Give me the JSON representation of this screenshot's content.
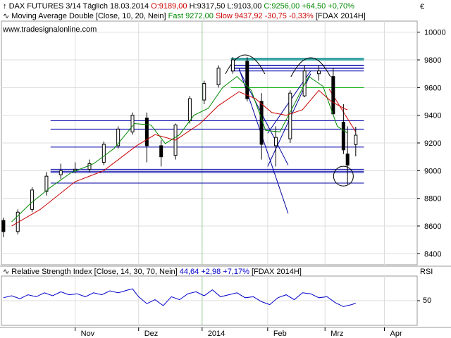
{
  "header": {
    "line1": {
      "instrument": "DAX FUTURES 3/14 Täglich",
      "date": "18.03.2014",
      "open": "O:9189,00",
      "high": "H:9317,50",
      "low": "L:9103,00",
      "close": "C:9256,00",
      "change": "+64,50",
      "change_pct": "+0,70%"
    },
    "line2": {
      "indicator": "Moving Average Double [Close, 10, 20, Nein]",
      "fast": "Fast 9272,00",
      "slow": "Slow 9437,92",
      "slow_change": "-30,75",
      "slow_change_pct": "-0,33%",
      "symbol": "[FDAX 2014H]"
    },
    "website": "www.tradesignalonline.com",
    "currency": "€"
  },
  "rsi_header": {
    "indicator": "Relative Strength Index [Close, 14, 30, 70, Nein]",
    "value": "44,64",
    "change": "+2,98",
    "change_pct": "+7,17%",
    "symbol": "[FDAX 2014H]",
    "axis_label": "RSI",
    "tick_50": "50"
  },
  "colors": {
    "up": "#000000",
    "down": "#000000",
    "fast_ma": "#008800",
    "slow_ma": "#cc0000",
    "trend": "#000099",
    "support": "#0000aa",
    "teal": "#008888",
    "green_level": "#00aa00",
    "grid": "#dddddd",
    "rsi": "#0000cc",
    "divider": "#99cc99"
  },
  "chart_data": [
    {
      "type": "candlestick",
      "title": "DAX FUTURES 3/14 Täglich",
      "ylim": [
        8320,
        10080
      ],
      "y_ticks": [
        "10000",
        "9800",
        "9600",
        "9400",
        "9200",
        "9000",
        "8800",
        "8600",
        "8400"
      ],
      "y_tick_values": [
        10000,
        9800,
        9600,
        9400,
        9200,
        9000,
        8800,
        8600,
        8400
      ],
      "x_tick_labels": [
        "Nov",
        "Dez",
        "2014",
        "Feb",
        "Mrz",
        "Apr"
      ],
      "x_tick_dates": [
        "2013-11-01",
        "2013-12-02",
        "2014-01-02",
        "2014-02-03",
        "2014-03-03",
        "2014-04-01"
      ],
      "x_range": [
        "2013-09-26",
        "2014-04-17"
      ],
      "grid": true,
      "series": [
        {
          "name": "Fast 9272,00",
          "kind": "ma",
          "period": 10,
          "x": [
            "2013-10-01",
            "2013-10-10",
            "2013-10-20",
            "2013-10-30",
            "2013-11-10",
            "2013-11-20",
            "2013-11-30",
            "2013-12-08",
            "2013-12-15",
            "2013-12-22",
            "2013-12-29",
            "2014-01-05",
            "2014-01-12",
            "2014-01-19",
            "2014-01-26",
            "2014-02-02",
            "2014-02-09",
            "2014-02-16",
            "2014-02-23",
            "2014-03-02",
            "2014-03-09",
            "2014-03-14"
          ],
          "y": [
            8630,
            8760,
            8880,
            8985,
            9050,
            9160,
            9340,
            9330,
            9195,
            9260,
            9400,
            9450,
            9600,
            9680,
            9580,
            9290,
            9280,
            9480,
            9680,
            9610,
            9320,
            9272
          ]
        },
        {
          "name": "Slow 9437,92",
          "kind": "ma",
          "period": 20,
          "x": [
            "2013-10-01",
            "2013-10-15",
            "2013-11-01",
            "2013-11-15",
            "2013-12-01",
            "2013-12-10",
            "2013-12-20",
            "2014-01-01",
            "2014-01-10",
            "2014-01-20",
            "2014-01-28",
            "2014-02-05",
            "2014-02-12",
            "2014-02-20",
            "2014-02-28",
            "2014-03-06",
            "2014-03-11",
            "2014-03-14"
          ],
          "y": [
            8600,
            8720,
            8920,
            9000,
            9180,
            9260,
            9220,
            9340,
            9470,
            9570,
            9520,
            9420,
            9400,
            9440,
            9580,
            9500,
            9460,
            9438
          ]
        }
      ],
      "candles": {
        "x": [
          "2013-09-27",
          "2013-10-04",
          "2013-10-11",
          "2013-10-18",
          "2013-10-25",
          "2013-11-01",
          "2013-11-08",
          "2013-11-15",
          "2013-11-22",
          "2013-11-29",
          "2013-12-06",
          "2013-12-13",
          "2013-12-20",
          "2013-12-27",
          "2014-01-03",
          "2014-01-10",
          "2014-01-17",
          "2014-01-24",
          "2014-01-31",
          "2014-02-07",
          "2014-02-14",
          "2014-02-21",
          "2014-02-28",
          "2014-03-07",
          "2014-03-12",
          "2014-03-14",
          "2014-03-18"
        ],
        "open": [
          8640,
          8560,
          8720,
          8850,
          8970,
          9000,
          9010,
          9060,
          9180,
          9280,
          9380,
          9180,
          9110,
          9360,
          9510,
          9620,
          9720,
          9790,
          9500,
          9180,
          9230,
          9540,
          9700,
          9680,
          9350,
          9120,
          9189
        ],
        "high": [
          8660,
          8720,
          8880,
          8990,
          9050,
          9060,
          9080,
          9210,
          9320,
          9420,
          9420,
          9220,
          9340,
          9540,
          9650,
          9760,
          9820,
          9820,
          9560,
          9320,
          9580,
          9760,
          9760,
          9740,
          9480,
          9320,
          9317
        ],
        "low": [
          8520,
          8540,
          8700,
          8820,
          8940,
          8980,
          8990,
          9040,
          9160,
          9260,
          9060,
          9030,
          9080,
          9340,
          9480,
          9600,
          9700,
          9500,
          9080,
          9030,
          9200,
          9530,
          9650,
          9400,
          9120,
          8900,
          9103
        ],
        "close": [
          8560,
          8700,
          8860,
          8960,
          9000,
          9010,
          9050,
          9190,
          9300,
          9400,
          9180,
          9100,
          9330,
          9520,
          9630,
          9740,
          9800,
          9520,
          9190,
          9240,
          9560,
          9720,
          9720,
          9410,
          9150,
          9040,
          9256
        ]
      },
      "annotations": {
        "support_lines": [
          9010,
          8995,
          8985,
          8910,
          9170,
          9300,
          9360
        ],
        "resistance_lines": [
          9810,
          9800,
          9760,
          9740,
          9720,
          9600
        ],
        "trend_line_1": {
          "from": [
            "2014-01-20",
            9740
          ],
          "to": [
            "2014-02-13",
            8690
          ]
        },
        "trend_line_2": {
          "from": [
            "2014-01-20",
            9730
          ],
          "to": [
            "2014-02-13",
            9040
          ]
        },
        "trend_line_3": {
          "from": [
            "2014-02-03",
            9030
          ],
          "to": [
            "2014-02-24",
            9700
          ]
        },
        "trend_line_4": {
          "from": [
            "2014-02-03",
            9270
          ],
          "to": [
            "2014-02-24",
            9720
          ]
        },
        "red_trend": {
          "from": [
            "2014-03-05",
            9590
          ],
          "to": [
            "2014-03-18",
            9280
          ]
        },
        "arc_1_center": [
          "2014-01-23",
          9800
        ],
        "arc_2_center": [
          "2014-02-24",
          9780
        ],
        "circle_center": [
          "2014-03-12",
          8960
        ]
      }
    },
    {
      "type": "line",
      "title": "Relative Strength Index [Close, 14, 30, 70, Nein]",
      "ylim": [
        0,
        100
      ],
      "y_ticks": [
        "50"
      ],
      "series": [
        {
          "name": "RSI",
          "x": [
            "2013-09-27",
            "2013-10-01",
            "2013-10-05",
            "2013-10-09",
            "2013-10-13",
            "2013-10-17",
            "2013-10-21",
            "2013-10-25",
            "2013-10-29",
            "2013-11-02",
            "2013-11-06",
            "2013-11-10",
            "2013-11-14",
            "2013-11-18",
            "2013-11-22",
            "2013-11-27",
            "2013-11-29",
            "2013-12-02",
            "2013-12-06",
            "2013-12-10",
            "2013-12-14",
            "2013-12-18",
            "2013-12-22",
            "2013-12-26",
            "2013-12-30",
            "2014-01-03",
            "2014-01-07",
            "2014-01-11",
            "2014-01-15",
            "2014-01-19",
            "2014-01-23",
            "2014-01-27",
            "2014-01-31",
            "2014-02-04",
            "2014-02-08",
            "2014-02-12",
            "2014-02-16",
            "2014-02-20",
            "2014-02-24",
            "2014-02-28",
            "2014-03-04",
            "2014-03-08",
            "2014-03-12",
            "2014-03-16",
            "2014-03-18"
          ],
          "y": [
            56,
            60,
            54,
            62,
            58,
            66,
            60,
            68,
            62,
            64,
            58,
            66,
            62,
            70,
            66,
            72,
            74,
            58,
            44,
            52,
            40,
            58,
            52,
            64,
            68,
            60,
            72,
            58,
            62,
            66,
            56,
            58,
            48,
            42,
            56,
            62,
            52,
            66,
            64,
            56,
            58,
            46,
            38,
            42,
            45
          ]
        }
      ]
    }
  ]
}
